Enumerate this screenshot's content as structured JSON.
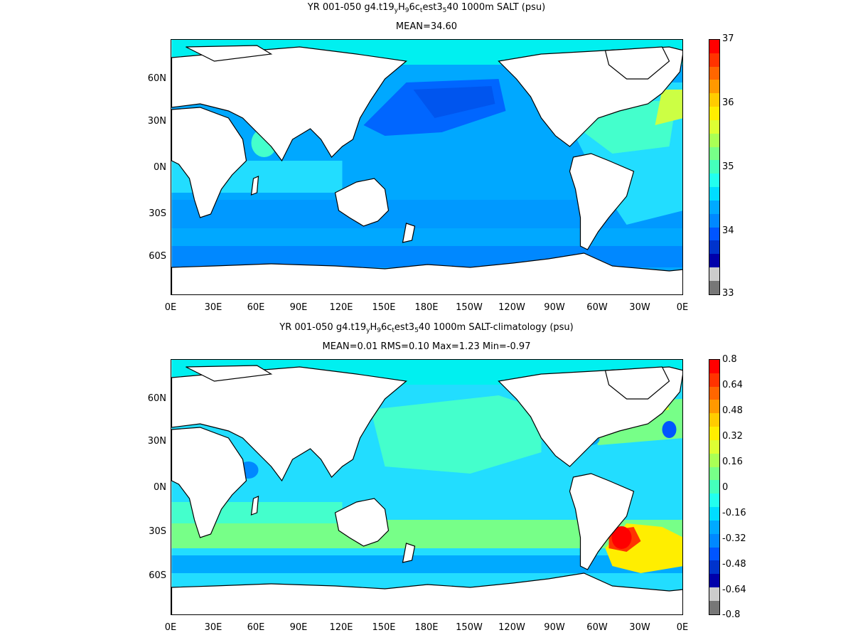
{
  "panels": [
    {
      "title_prefix": "YR 001-050 g4.t19",
      "title_sub1": "y",
      "title_mid1": "H",
      "title_sub2": "9",
      "title_mid2": "6c",
      "title_sub3": "t",
      "title_mid3": "est3",
      "title_sub4": "5",
      "title_suffix": "40 1000m SALT (psu)",
      "stats": "MEAN=34.60",
      "colorbar": {
        "labels": [
          "37",
          "36",
          "35",
          "34",
          "33"
        ],
        "colors": [
          "#ff0000",
          "#ff3300",
          "#ff6600",
          "#ff9900",
          "#ffcc00",
          "#ffee00",
          "#ddff33",
          "#aaff55",
          "#77ff88",
          "#44ffbb",
          "#22ffee",
          "#00ddff",
          "#00aaff",
          "#0088ff",
          "#0055ff",
          "#0033cc",
          "#0000aa",
          "#cccccc",
          "#777777"
        ]
      }
    },
    {
      "title_prefix": "YR 001-050 g4.t19",
      "title_sub1": "y",
      "title_mid1": "H",
      "title_sub2": "9",
      "title_mid2": "6c",
      "title_sub3": "t",
      "title_mid3": "est3",
      "title_sub4": "5",
      "title_suffix": "40 1000m SALT-climatology (psu)",
      "stats": "MEAN=0.01   RMS=0.10   Max=1.23   Min=-0.97",
      "colorbar": {
        "labels": [
          "0.8",
          "0.64",
          "0.48",
          "0.32",
          "0.16",
          "0",
          "-0.16",
          "-0.32",
          "-0.48",
          "-0.64",
          "-0.8"
        ],
        "colors": [
          "#ff0000",
          "#ff3300",
          "#ff6600",
          "#ff9900",
          "#ffcc00",
          "#ffee00",
          "#ddff33",
          "#aaff55",
          "#77ff88",
          "#44ffbb",
          "#22ffee",
          "#00ddff",
          "#00aaff",
          "#0088ff",
          "#0055ff",
          "#0033cc",
          "#0000aa",
          "#cccccc",
          "#777777"
        ]
      }
    }
  ],
  "lat_labels": [
    "60N",
    "30N",
    "0N",
    "30S",
    "60S"
  ],
  "lon_labels": [
    "0E",
    "30E",
    "60E",
    "90E",
    "120E",
    "150E",
    "180E",
    "150W",
    "120W",
    "90W",
    "60W",
    "30W",
    "0E"
  ]
}
